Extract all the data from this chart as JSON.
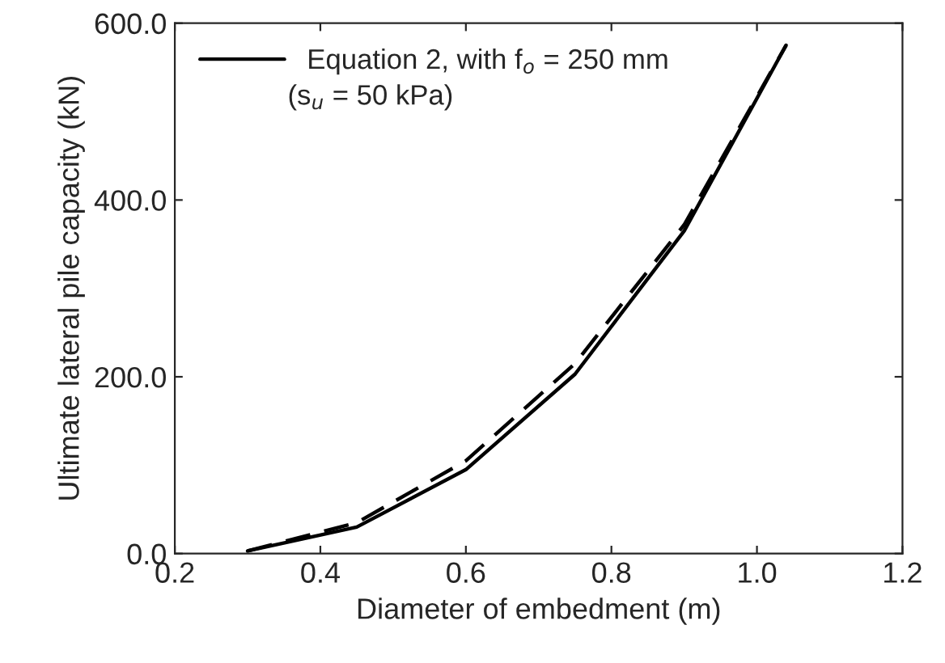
{
  "chart_data": {
    "type": "line",
    "xlabel": "Diameter of embedment (m)",
    "ylabel": "Ultimate lateral pile capacity (kN)",
    "x": [
      0.3,
      0.45,
      0.6,
      0.75,
      0.9,
      1.04
    ],
    "series": [
      {
        "name": "Equation 2, with f$_{o}$ = 250 mm",
        "color": "#000000",
        "line_style": "solid",
        "values": [
          3,
          30,
          95,
          203,
          365,
          575
        ]
      },
      {
        "color": "#000000",
        "line_style": "dashed",
        "values": [
          3,
          35,
          105,
          215,
          372,
          575
        ]
      }
    ],
    "annotations": [
      "(s$_{u}$ = 50 kPa)"
    ],
    "xlim": [
      0.2,
      1.2
    ],
    "xticks": [
      0.2,
      0.4,
      0.6,
      0.8,
      {
        "value": 1.0,
        "label": "1.0"
      },
      1.2
    ],
    "ylim": [
      0,
      600
    ],
    "yticks": [
      {
        "value": 0,
        "label": "0.0"
      },
      {
        "value": 200,
        "label": "200.0"
      },
      {
        "value": 400,
        "label": "400.0"
      },
      {
        "value": 600,
        "label": "600.0"
      }
    ],
    "legend": "top left",
    "grid": false,
    "marker": "none"
  }
}
